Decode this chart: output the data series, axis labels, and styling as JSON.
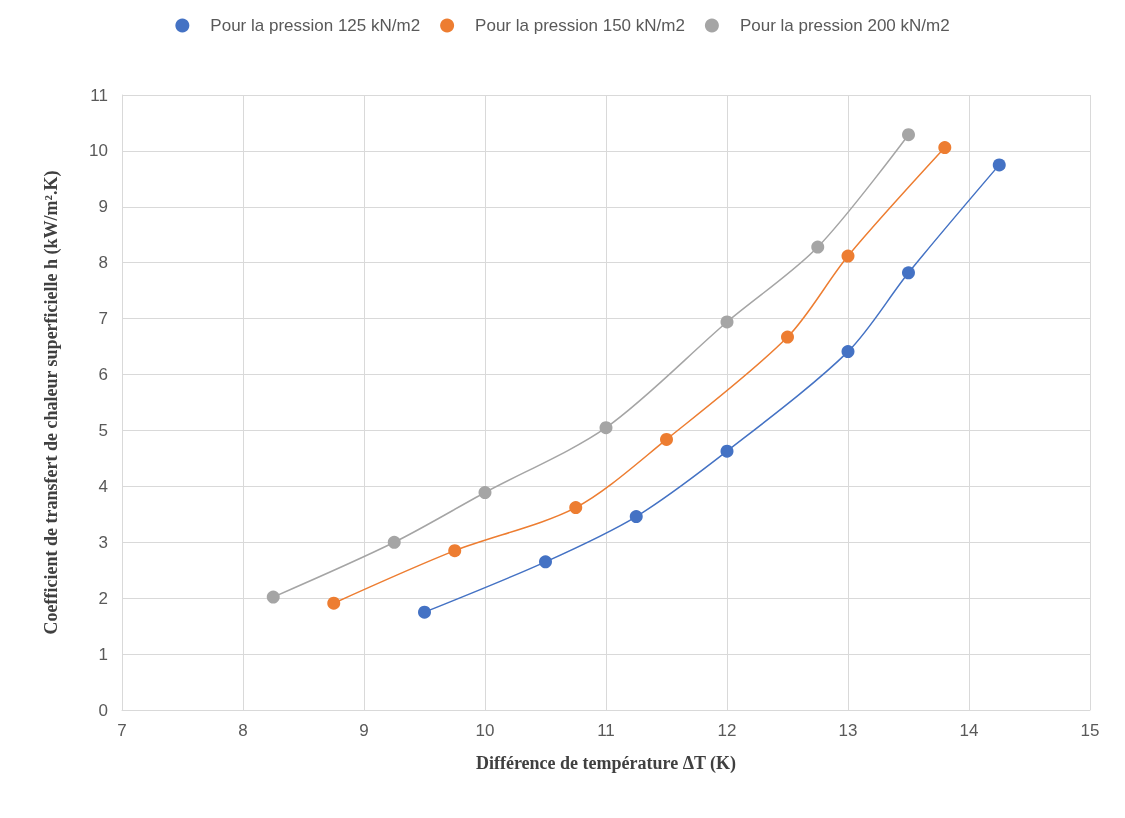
{
  "chart_data": {
    "type": "line",
    "xlabel": "Différence de température ΔT (K)",
    "ylabel": "Coefficient de transfert de chaleur superficielle h (kW/m².K)",
    "xlim": [
      7,
      15
    ],
    "xticks": [
      7,
      8,
      9,
      10,
      11,
      12,
      13,
      14,
      15
    ],
    "ylim": [
      0,
      11
    ],
    "yticks": [
      0,
      1,
      2,
      3,
      4,
      5,
      6,
      7,
      8,
      9,
      10,
      11
    ],
    "grid": true,
    "legend": "top",
    "marker": "circle",
    "line_style": "solid",
    "series": [
      {
        "name": "Pour la pression 125 kN/m2",
        "color": "#4472c4",
        "x": [
          9.5,
          10.5,
          11.25,
          12,
          13,
          13.5,
          14.25
        ],
        "values": [
          1.75,
          2.65,
          3.46,
          4.63,
          6.41,
          7.82,
          9.75
        ]
      },
      {
        "name": "Pour la pression 150 kN/m2",
        "color": "#ed7d31",
        "x": [
          8.75,
          9.75,
          10.75,
          11.5,
          12.5,
          13,
          13.8
        ],
        "values": [
          1.91,
          2.85,
          3.62,
          4.84,
          6.67,
          8.12,
          10.06
        ]
      },
      {
        "name": "Pour la pression 200 kN/m2",
        "color": "#a5a5a5",
        "x": [
          8.25,
          9.25,
          10,
          11,
          12,
          12.75,
          13.5
        ],
        "values": [
          2.02,
          3.0,
          3.89,
          5.05,
          6.94,
          8.28,
          10.29
        ]
      }
    ]
  }
}
